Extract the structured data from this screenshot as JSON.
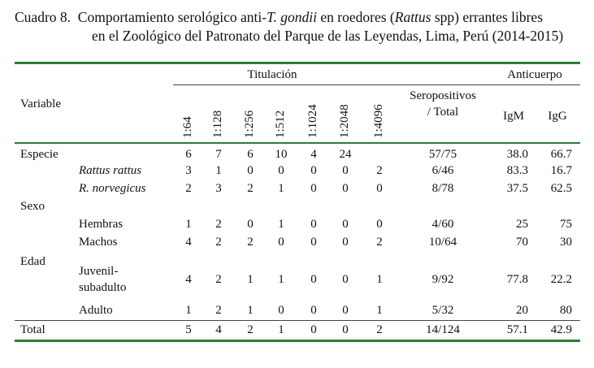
{
  "caption": {
    "number": "Cuadro 8.",
    "line1_a": "Comportamiento serológico anti-",
    "line1_italic": "T. gondii",
    "line1_b": " en roedores (",
    "line1_italic2": "Rattus",
    "line1_c": " spp) errantes libres",
    "line2": "en el Zoológico del Patronato del Parque de las Leyendas, Lima, Perú (2014-2015)"
  },
  "header": {
    "variable": "Variable",
    "titulacion": "Titulación",
    "titers": [
      "1:64",
      "1:128",
      "1:256",
      "1:512",
      "1:1024",
      "1:2048",
      "1:4096"
    ],
    "seropositivos_1": "Seropositivos",
    "seropositivos_2": "/ Total",
    "anticuerpo": "Anticuerpo",
    "igm": "IgM",
    "igg": "IgG"
  },
  "rows": [
    {
      "label": "Especie",
      "italic": false,
      "indent": false,
      "vals": [
        "6",
        "7",
        "6",
        "10",
        "4",
        "24",
        ""
      ],
      "sero": "57/75",
      "igm": "38.0",
      "igg": "66.7"
    },
    {
      "label": "Rattus rattus",
      "italic": true,
      "indent": true,
      "vals": [
        "3",
        "1",
        "0",
        "0",
        "0",
        "0",
        "2"
      ],
      "sero": "6/46",
      "igm": "83.3",
      "igg": "16.7"
    },
    {
      "label": "R. norvegicus",
      "italic": true,
      "indent": true,
      "vals": [
        "2",
        "3",
        "2",
        "1",
        "0",
        "0",
        "0"
      ],
      "sero": "8/78",
      "igm": "37.5",
      "igg": "62.5"
    },
    {
      "label": "Sexo",
      "italic": false,
      "indent": false,
      "vals": [],
      "sero": "",
      "igm": "",
      "igg": ""
    },
    {
      "label": "Hembras",
      "italic": false,
      "indent": true,
      "vals": [
        "1",
        "2",
        "0",
        "1",
        "0",
        "0",
        "0"
      ],
      "sero": "4/60",
      "igm": "25",
      "igg": "75"
    },
    {
      "label": "Machos",
      "italic": false,
      "indent": true,
      "vals": [
        "4",
        "2",
        "2",
        "0",
        "0",
        "0",
        "2"
      ],
      "sero": "10/64",
      "igm": "70",
      "igg": "30"
    },
    {
      "label": "Edad",
      "italic": false,
      "indent": false,
      "vals": [],
      "sero": "",
      "igm": "",
      "igg": ""
    },
    {
      "label": "Juvenil-",
      "label2": "subadulto",
      "italic": false,
      "indent": true,
      "vals": [
        "4",
        "2",
        "1",
        "1",
        "0",
        "0",
        "1"
      ],
      "sero": "9/92",
      "igm": "77.8",
      "igg": "22.2"
    },
    {
      "label": "Adulto",
      "italic": false,
      "indent": true,
      "vals": [
        "1",
        "2",
        "1",
        "0",
        "0",
        "0",
        "1"
      ],
      "sero": "5/32",
      "igm": "20",
      "igg": "80"
    },
    {
      "label": "Total",
      "italic": false,
      "indent": false,
      "vals": [
        "5",
        "4",
        "2",
        "1",
        "0",
        "0",
        "2"
      ],
      "sero": "14/124",
      "igm": "57.1",
      "igg": "42.9"
    }
  ]
}
